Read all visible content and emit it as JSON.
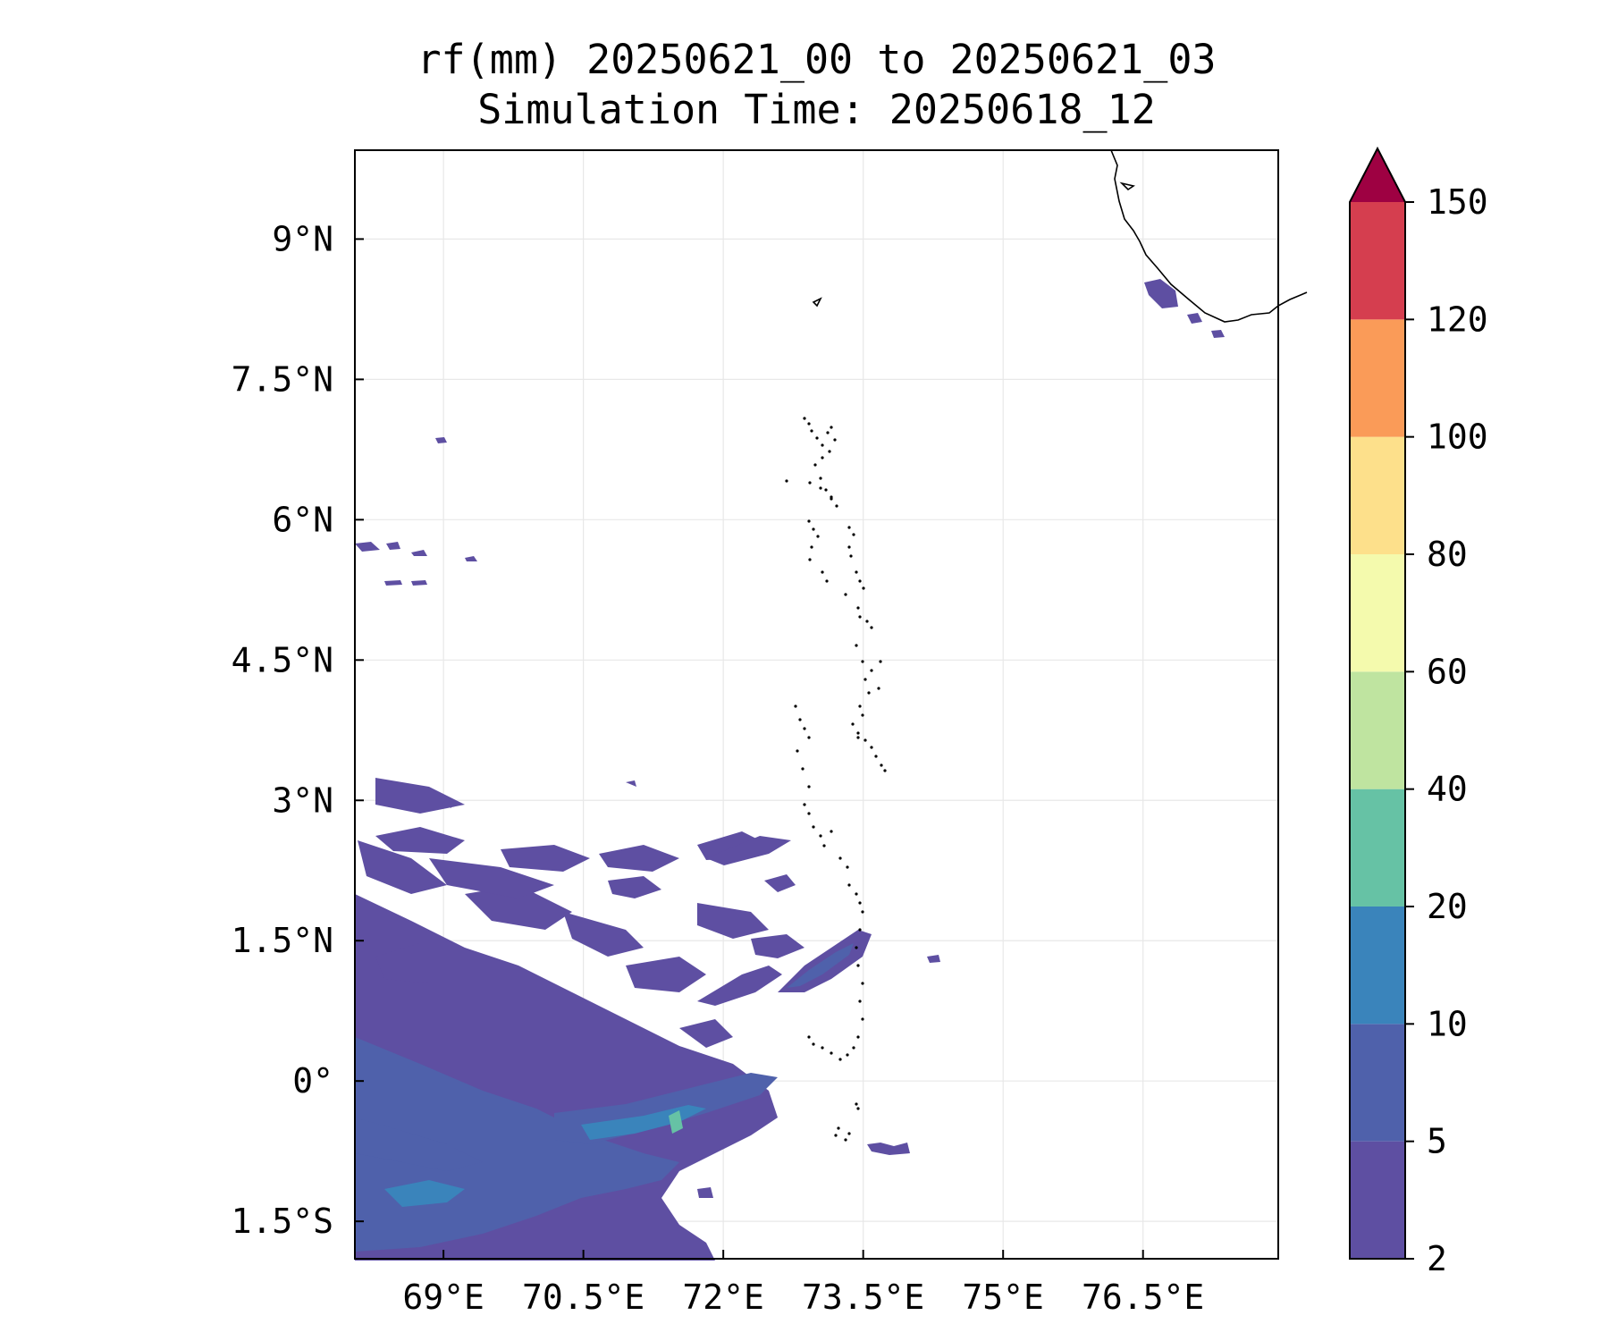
{
  "title_line1": "rf(mm) 20250621_00 to 20250621_03",
  "title_line2": "Simulation Time: 20250618_12",
  "map": {
    "lon_ticks": [
      {
        "label": "69°E",
        "value": 69.0
      },
      {
        "label": "70.5°E",
        "value": 70.5
      },
      {
        "label": "72°E",
        "value": 72.0
      },
      {
        "label": "73.5°E",
        "value": 73.5
      },
      {
        "label": "75°E",
        "value": 75.0
      },
      {
        "label": "76.5°E",
        "value": 76.5
      }
    ],
    "lat_ticks": [
      {
        "label": "9°N",
        "value": 9.0
      },
      {
        "label": "7.5°N",
        "value": 7.5
      },
      {
        "label": "6°N",
        "value": 6.0
      },
      {
        "label": "4.5°N",
        "value": 4.5
      },
      {
        "label": "3°N",
        "value": 3.0
      },
      {
        "label": "1.5°N",
        "value": 1.5
      },
      {
        "label": "0°",
        "value": 0.0
      },
      {
        "label": "1.5°S",
        "value": -1.5
      }
    ],
    "lon_range": [
      68.05,
      77.95
    ],
    "lat_range": [
      -1.9,
      9.95
    ],
    "grid": true
  },
  "colorbar": {
    "levels": [
      "2",
      "5",
      "10",
      "20",
      "40",
      "60",
      "80",
      "100",
      "120",
      "150"
    ],
    "colors": [
      "#5e4fa2",
      "#4f61ab",
      "#3a84bb",
      "#66c2a5",
      "#bfe4a0",
      "#f4faad",
      "#fde08b",
      "#fa9b58",
      "#d53e4f"
    ],
    "extend_color": "#9e0142",
    "extend": "max"
  },
  "colors": {
    "rain_low": "#5e4fa2",
    "rain_mid": "#4f61ab",
    "rain_high": "#3a84bb",
    "rain_peak": "#66c2a5",
    "coast": "#000000",
    "grid": "#e8e8e8"
  }
}
